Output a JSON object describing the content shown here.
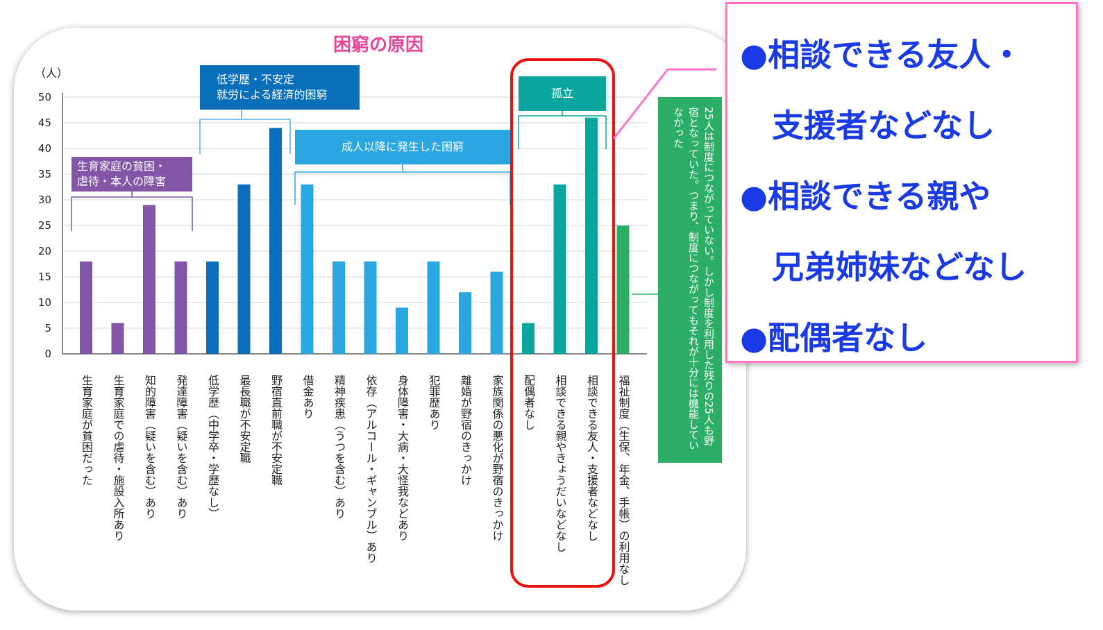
{
  "chart_data": {
    "type": "bar",
    "title": "困窮の原因",
    "ylabel": "（人）",
    "ylim": [
      0,
      50
    ],
    "yticks": [
      "0",
      "5",
      "10",
      "15",
      "20",
      "25",
      "30",
      "35",
      "40",
      "45",
      "50"
    ],
    "grid": true,
    "categories": [
      "生育家庭が貧困だった",
      "生育家庭での虐待・施設入所あり",
      "知的障害（疑いを含む）あり",
      "発達障害（疑いを含む）あり",
      "低学歴（中学卒・学歴なし）",
      "最長職が不安定職",
      "野宿直前職が不安定職",
      "借金あり",
      "精神疾患（うつを含む）あり",
      "依存（アルコール・ギャンブル）あり",
      "身体障害・大病・大怪我などあり",
      "犯罪歴あり",
      "離婚が野宿のきっかけ",
      "家族関係の悪化が野宿のきっかけ",
      "配偶者なし",
      "相談できる親やきょうだいなどなし",
      "相談できる友人・支援者などなし",
      "福祉制度（生保、年金、手帳）の利用なし"
    ],
    "values": [
      18,
      6,
      29,
      18,
      18,
      33,
      44,
      33,
      18,
      18,
      9,
      18,
      12,
      16,
      6,
      33,
      46,
      25
    ],
    "bar_groups": [
      0,
      0,
      0,
      0,
      1,
      1,
      1,
      2,
      2,
      2,
      2,
      2,
      2,
      2,
      3,
      3,
      3,
      4
    ],
    "group_colors": [
      "#8255a6",
      "#0a6fba",
      "#2aa7e0",
      "#0aa59c",
      "#2cae66"
    ],
    "groups": [
      {
        "label": "生育家庭の貧困・\n虐待・本人の障害"
      },
      {
        "label": "低学歴・不安定\n就労による経済的困窮"
      },
      {
        "label": "成人以降に発生した困窮"
      },
      {
        "label": "孤立"
      }
    ],
    "annotation": "25人は制度につながっていない。しかし制度を利用した残りの25人も野宿となっていた。つまり、制度につながってもそれが十分には機能していなかった"
  },
  "callout": {
    "lines": [
      "●相談できる友人・",
      "　支援者などなし",
      "●相談できる親や",
      "　兄弟姉妹などなし",
      "●配偶者なし"
    ],
    "border_color": "#ff73c9",
    "text_color": "#1a3ae6"
  },
  "highlight_color": "#ee1111"
}
